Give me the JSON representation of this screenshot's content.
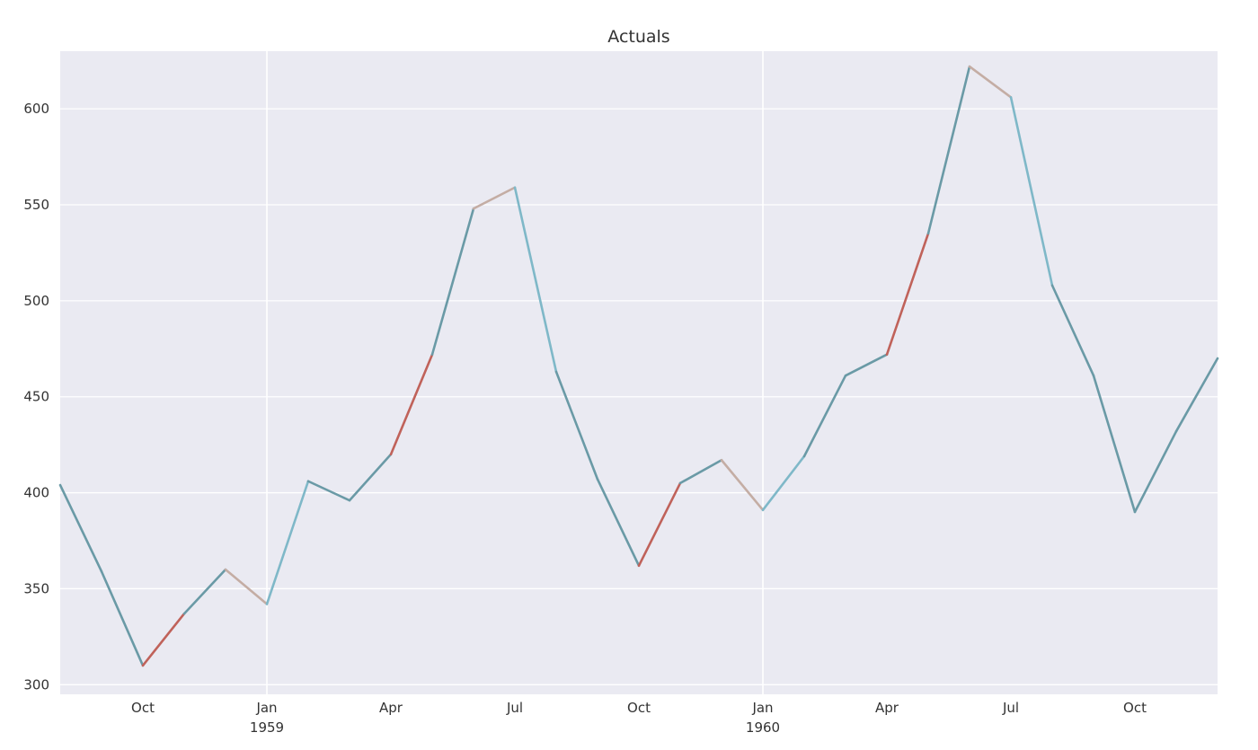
{
  "chart_data": {
    "type": "line",
    "title": "Actuals",
    "xlabel": "",
    "ylabel": "",
    "x": [
      "1958-08",
      "1958-09",
      "1958-10",
      "1958-11",
      "1958-12",
      "1959-01",
      "1959-02",
      "1959-03",
      "1959-04",
      "1959-05",
      "1959-06",
      "1959-07",
      "1959-08",
      "1959-09",
      "1959-10",
      "1959-11",
      "1959-12",
      "1960-01",
      "1960-02",
      "1960-03",
      "1960-04",
      "1960-05",
      "1960-06",
      "1960-07",
      "1960-08",
      "1960-09",
      "1960-10",
      "1960-11",
      "1960-12"
    ],
    "values": [
      404,
      359,
      310,
      337,
      360,
      342,
      406,
      396,
      420,
      472,
      548,
      559,
      463,
      407,
      362,
      405,
      417,
      391,
      419,
      461,
      472,
      535,
      622,
      606,
      508,
      461,
      390,
      432,
      470
    ],
    "segment_colors": [
      "#6a9aa6",
      "#6a9aa6",
      "#c0625a",
      "#6a9aa6",
      "#c4ada4",
      "#7fb8c8",
      "#6a9aa6",
      "#6a9aa6",
      "#c0625a",
      "#6a9aa6",
      "#c4ada4",
      "#7fb8c8",
      "#6a9aa6",
      "#6a9aa6",
      "#c0625a",
      "#6a9aa6",
      "#c4ada4",
      "#7fb8c8",
      "#6a9aa6",
      "#6a9aa6",
      "#c0625a",
      "#6a9aa6",
      "#c4ada4",
      "#7fb8c8",
      "#6a9aa6",
      "#6a9aa6",
      "#6a9aa6",
      "#6a9aa6"
    ],
    "ylim": [
      295,
      630
    ],
    "xlim": [
      "1958-08",
      "1960-12"
    ],
    "yticks": [
      300,
      350,
      400,
      450,
      500,
      550,
      600
    ],
    "xticks": [
      {
        "at": "1958-10",
        "label": "Oct",
        "sublabel": ""
      },
      {
        "at": "1959-01",
        "label": "Jan",
        "sublabel": "1959"
      },
      {
        "at": "1959-04",
        "label": "Apr",
        "sublabel": ""
      },
      {
        "at": "1959-07",
        "label": "Jul",
        "sublabel": ""
      },
      {
        "at": "1959-10",
        "label": "Oct",
        "sublabel": ""
      },
      {
        "at": "1960-01",
        "label": "Jan",
        "sublabel": "1960"
      },
      {
        "at": "1960-04",
        "label": "Apr",
        "sublabel": ""
      },
      {
        "at": "1960-07",
        "label": "Jul",
        "sublabel": ""
      },
      {
        "at": "1960-10",
        "label": "Oct",
        "sublabel": ""
      }
    ],
    "major_x_gridlines": [
      "1959-01",
      "1960-01"
    ],
    "grid": true,
    "legend": "none",
    "colors": {
      "background": "#eaeaf2",
      "grid": "#ffffff",
      "series_main": "#6a9aa6",
      "series_red": "#c0625a",
      "series_tan": "#c4ada4",
      "series_light": "#7fb8c8"
    }
  }
}
